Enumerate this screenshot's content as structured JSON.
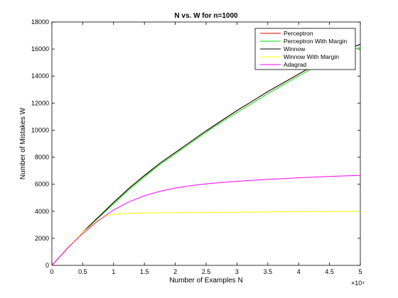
{
  "chart_data": {
    "type": "line",
    "title": "N vs. W for n=1000",
    "xlabel": "Number of Examples N",
    "ylabel": "Number of Mistakes W",
    "x_multiplier_label": "×10⁴",
    "xlim": [
      0,
      5
    ],
    "ylim": [
      0,
      18000
    ],
    "x_ticks": [
      0,
      0.5,
      1,
      1.5,
      2,
      2.5,
      3,
      3.5,
      4,
      4.5,
      5
    ],
    "x_tick_labels": [
      "0",
      "0.5",
      "1",
      "1.5",
      "2",
      "2.5",
      "3",
      "3.5",
      "4",
      "4.5",
      "5"
    ],
    "y_ticks": [
      0,
      2000,
      4000,
      6000,
      8000,
      10000,
      12000,
      14000,
      16000,
      18000
    ],
    "y_tick_labels": [
      "0",
      "2000",
      "4000",
      "6000",
      "8000",
      "10000",
      "12000",
      "14000",
      "16000",
      "18000"
    ],
    "grid": false,
    "legend_position": "top-right",
    "series": [
      {
        "name": "Perceptron",
        "color": "#ff0000",
        "x": [
          0,
          0.25,
          0.5,
          0.75,
          1.0,
          1.25,
          1.5,
          1.75,
          2.0,
          2.25,
          2.5,
          2.75,
          3.0,
          3.25,
          3.5,
          3.75,
          4.0,
          4.25,
          4.5,
          4.75,
          5.0
        ],
        "y": [
          0,
          1250,
          2450,
          3550,
          4650,
          5700,
          6650,
          7550,
          8350,
          9150,
          9950,
          10700,
          11450,
          12150,
          12850,
          13500,
          14150,
          14800,
          15450,
          15900,
          16350
        ]
      },
      {
        "name": "Perceptron With Margin",
        "color": "#00dd00",
        "x": [
          0,
          0.25,
          0.5,
          0.75,
          1.0,
          1.25,
          1.5,
          1.75,
          2.0,
          2.25,
          2.5,
          2.75,
          3.0,
          3.25,
          3.5,
          3.75,
          4.0,
          4.25,
          4.5,
          4.75,
          5.0
        ],
        "y": [
          0,
          1250,
          2450,
          3500,
          4550,
          5600,
          6550,
          7450,
          8250,
          9050,
          9850,
          10600,
          11300,
          12000,
          12700,
          13350,
          14000,
          14650,
          15250,
          15700,
          16150
        ]
      },
      {
        "name": "Winnow",
        "color": "#000000",
        "x": [
          0,
          0.25,
          0.5,
          0.75,
          1.0,
          1.25,
          1.5,
          1.75,
          2.0,
          2.25,
          2.5,
          2.75,
          3.0,
          3.25,
          3.5,
          3.75,
          4.0,
          4.25,
          4.5,
          4.75,
          5.0
        ],
        "y": [
          0,
          1250,
          2450,
          3550,
          4650,
          5700,
          6650,
          7550,
          8350,
          9150,
          9950,
          10700,
          11450,
          12150,
          12850,
          13500,
          14150,
          14800,
          15450,
          15900,
          16350
        ]
      },
      {
        "name": "Winnow With Margin",
        "color": "#ffff00",
        "x": [
          0,
          0.25,
          0.5,
          0.75,
          0.9,
          1.0,
          1.25,
          1.5,
          2.0,
          2.5,
          3.0,
          3.5,
          4.0,
          4.5,
          5.0
        ],
        "y": [
          0,
          1250,
          2450,
          3350,
          3700,
          3780,
          3850,
          3880,
          3900,
          3910,
          3930,
          3950,
          3970,
          3980,
          4000
        ]
      },
      {
        "name": "Adagrad",
        "color": "#ff00ff",
        "x": [
          0,
          0.25,
          0.5,
          0.75,
          1.0,
          1.25,
          1.5,
          1.75,
          2.0,
          2.25,
          2.5,
          2.75,
          3.0,
          3.25,
          3.5,
          3.75,
          4.0,
          4.25,
          4.5,
          4.75,
          5.0
        ],
        "y": [
          0,
          1250,
          2350,
          3300,
          4100,
          4700,
          5150,
          5480,
          5720,
          5900,
          6030,
          6130,
          6220,
          6290,
          6360,
          6420,
          6480,
          6530,
          6580,
          6620,
          6650
        ]
      }
    ]
  }
}
